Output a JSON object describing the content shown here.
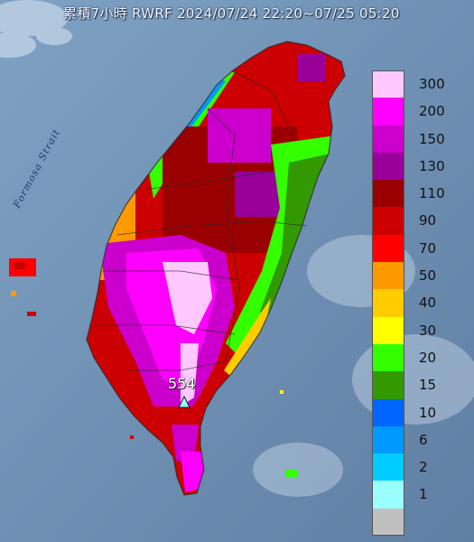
{
  "header": {
    "title": "累積7小時 RWRF 2024/07/24 22:20~07/25 05:20"
  },
  "map": {
    "strait_label": "Formosa Strait",
    "peak_value": "554",
    "colors": {
      "sea": "#6f8fb0",
      "land_outline": "#2b2b2b"
    }
  },
  "legend": {
    "items": [
      {
        "label": "300",
        "color": "#ffc8ff"
      },
      {
        "label": "200",
        "color": "#ff00ff"
      },
      {
        "label": "150",
        "color": "#cc00cc"
      },
      {
        "label": "130",
        "color": "#99009a"
      },
      {
        "label": "110",
        "color": "#9a0000"
      },
      {
        "label": "90",
        "color": "#cc0000"
      },
      {
        "label": "70",
        "color": "#ff0000"
      },
      {
        "label": "50",
        "color": "#ff9900"
      },
      {
        "label": "40",
        "color": "#ffcc00"
      },
      {
        "label": "30",
        "color": "#ffff00"
      },
      {
        "label": "20",
        "color": "#33ff00"
      },
      {
        "label": "15",
        "color": "#339900"
      },
      {
        "label": "10",
        "color": "#0066ff"
      },
      {
        "label": "6",
        "color": "#0099ff"
      },
      {
        "label": "2",
        "color": "#00ccff"
      },
      {
        "label": "1",
        "color": "#99ffff"
      },
      {
        "label": "",
        "color": "#c0c0c0"
      }
    ]
  }
}
